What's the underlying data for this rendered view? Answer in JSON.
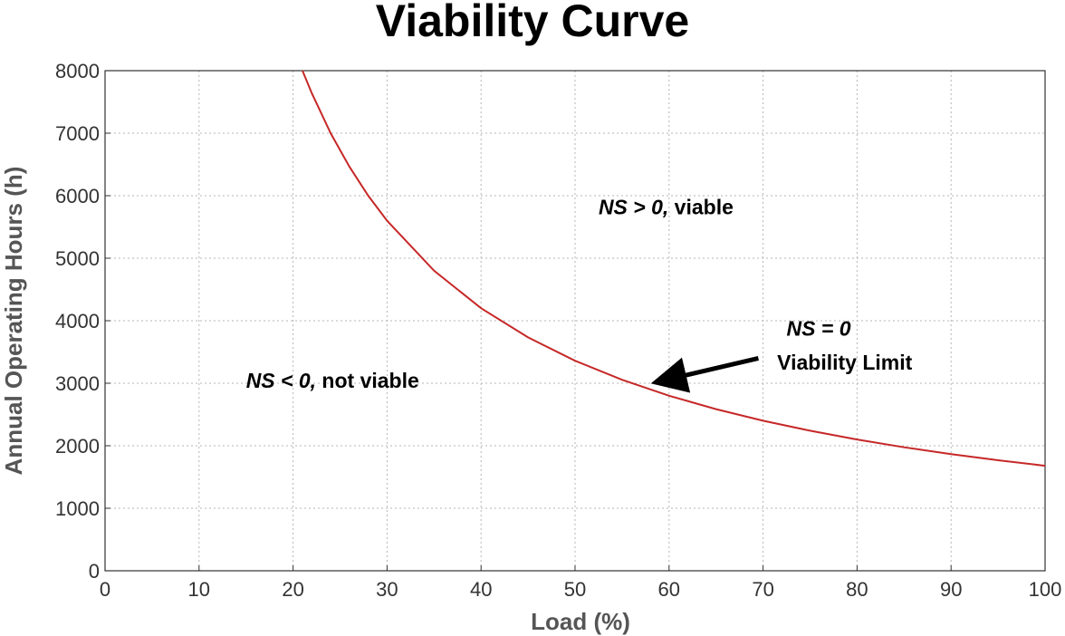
{
  "chart_data": {
    "type": "line",
    "title": "Viability Curve",
    "xlabel": "Load (%)",
    "ylabel": "Annual Operating Hours (h)",
    "xlim": [
      0,
      100
    ],
    "ylim": [
      0,
      8000
    ],
    "xticks": [
      0,
      10,
      20,
      30,
      40,
      50,
      60,
      70,
      80,
      90,
      100
    ],
    "yticks": [
      0,
      1000,
      2000,
      3000,
      4000,
      5000,
      6000,
      7000,
      8000
    ],
    "grid": true,
    "series": [
      {
        "color": "#c62828",
        "x": [
          21,
          22,
          24,
          26,
          28,
          30,
          35,
          40,
          45,
          50,
          55,
          60,
          65,
          70,
          75,
          80,
          85,
          90,
          95,
          100
        ],
        "y": [
          8000,
          7636,
          7000,
          6462,
          6000,
          5600,
          4800,
          4200,
          3733,
          3360,
          3055,
          2800,
          2585,
          2400,
          2240,
          2100,
          1976,
          1867,
          1768,
          1680
        ]
      }
    ],
    "annotations": [
      {
        "name": "viable-region",
        "italic": "NS > 0,",
        "text": " viable",
        "x": 52.5,
        "y": 5700
      },
      {
        "name": "not-viable-region",
        "italic": "NS < 0,",
        "text": " not viable",
        "x": 15,
        "y": 2930
      },
      {
        "name": "limit-equation",
        "italic": "NS = 0",
        "text": "",
        "x": 72.5,
        "y": 3760
      },
      {
        "name": "limit-label",
        "italic": "",
        "text": "Viability Limit",
        "x": 71.5,
        "y": 3220
      }
    ],
    "arrow": {
      "from": [
        69.5,
        3400
      ],
      "to": [
        59,
        3030
      ]
    }
  }
}
